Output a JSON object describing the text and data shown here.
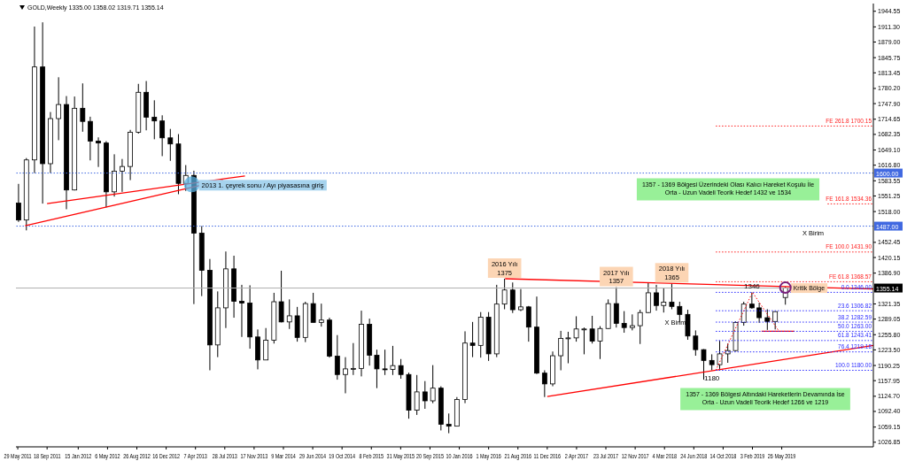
{
  "chart_data": {
    "type": "candlestick",
    "subtitle": "GOLD,Weekly  1335.00 1358.02 1319.71 1355.14",
    "color": "#000000",
    "x": [
      "2011-06",
      "2011-07",
      "2011-08",
      "2011-09",
      "2011-10",
      "2011-11",
      "2011-12",
      "2012-01",
      "2012-02",
      "2012-03",
      "2012-04",
      "2012-05",
      "2012-06",
      "2012-07",
      "2012-08",
      "2012-09",
      "2012-10",
      "2012-11",
      "2012-12",
      "2013-01",
      "2013-02",
      "2013-03",
      "2013-04",
      "2013-05",
      "2013-06",
      "2013-07",
      "2013-08",
      "2013-09",
      "2013-10",
      "2013-11",
      "2013-12",
      "2014-01",
      "2014-02",
      "2014-03",
      "2014-04",
      "2014-05",
      "2014-06",
      "2014-07",
      "2014-08",
      "2014-09",
      "2014-10",
      "2014-11",
      "2014-12",
      "2015-01",
      "2015-02",
      "2015-03",
      "2015-04",
      "2015-05",
      "2015-06",
      "2015-07",
      "2015-08",
      "2015-09",
      "2015-10",
      "2015-11",
      "2015-12",
      "2016-01",
      "2016-02",
      "2016-03",
      "2016-04",
      "2016-05",
      "2016-06",
      "2016-07",
      "2016-08",
      "2016-09",
      "2016-10",
      "2016-11",
      "2016-12",
      "2017-01",
      "2017-02",
      "2017-03",
      "2017-04",
      "2017-05",
      "2017-06",
      "2017-07",
      "2017-08",
      "2017-09",
      "2017-10",
      "2017-11",
      "2017-12",
      "2018-01",
      "2018-02",
      "2018-03",
      "2018-04",
      "2018-05",
      "2018-06",
      "2018-07",
      "2018-08",
      "2018-09",
      "2018-10",
      "2018-11",
      "2018-12",
      "2019-01",
      "2019-02",
      "2019-03",
      "2019-04",
      "2019-05",
      "2019-06-09"
    ],
    "ohlc": [
      [
        1536,
        1577,
        1496,
        1500
      ],
      [
        1500,
        1632,
        1478,
        1628
      ],
      [
        1628,
        1912,
        1600,
        1826
      ],
      [
        1826,
        1921,
        1535,
        1620
      ],
      [
        1620,
        1730,
        1600,
        1716
      ],
      [
        1716,
        1804,
        1670,
        1746
      ],
      [
        1746,
        1764,
        1523,
        1564
      ],
      [
        1564,
        1763,
        1563,
        1738
      ],
      [
        1738,
        1791,
        1688,
        1710
      ],
      [
        1710,
        1720,
        1627,
        1668
      ],
      [
        1668,
        1676,
        1613,
        1664
      ],
      [
        1664,
        1668,
        1527,
        1560
      ],
      [
        1560,
        1640,
        1550,
        1604
      ],
      [
        1604,
        1630,
        1560,
        1614
      ],
      [
        1614,
        1692,
        1585,
        1687
      ],
      [
        1687,
        1790,
        1684,
        1772
      ],
      [
        1772,
        1796,
        1691,
        1719
      ],
      [
        1719,
        1755,
        1672,
        1711
      ],
      [
        1711,
        1723,
        1636,
        1675
      ],
      [
        1675,
        1694,
        1626,
        1662
      ],
      [
        1662,
        1683,
        1555,
        1578
      ],
      [
        1578,
        1617,
        1562,
        1595
      ],
      [
        1595,
        1605,
        1321,
        1472
      ],
      [
        1472,
        1487,
        1338,
        1393
      ],
      [
        1393,
        1417,
        1180,
        1234
      ],
      [
        1234,
        1348,
        1208,
        1313
      ],
      [
        1313,
        1433,
        1270,
        1396
      ],
      [
        1396,
        1424,
        1292,
        1327
      ],
      [
        1327,
        1362,
        1251,
        1323
      ],
      [
        1323,
        1361,
        1226,
        1251
      ],
      [
        1251,
        1267,
        1182,
        1202
      ],
      [
        1202,
        1270,
        1202,
        1244
      ],
      [
        1244,
        1345,
        1237,
        1326
      ],
      [
        1326,
        1392,
        1282,
        1283
      ],
      [
        1283,
        1331,
        1268,
        1296
      ],
      [
        1296,
        1315,
        1241,
        1250
      ],
      [
        1250,
        1326,
        1240,
        1322
      ],
      [
        1322,
        1345,
        1282,
        1282
      ],
      [
        1282,
        1322,
        1273,
        1287
      ],
      [
        1287,
        1292,
        1207,
        1210
      ],
      [
        1210,
        1255,
        1160,
        1171
      ],
      [
        1171,
        1208,
        1131,
        1183
      ],
      [
        1183,
        1238,
        1170,
        1184
      ],
      [
        1184,
        1307,
        1167,
        1278
      ],
      [
        1278,
        1290,
        1190,
        1212
      ],
      [
        1212,
        1224,
        1142,
        1183
      ],
      [
        1183,
        1224,
        1170,
        1182
      ],
      [
        1182,
        1232,
        1170,
        1190
      ],
      [
        1190,
        1204,
        1162,
        1171
      ],
      [
        1171,
        1175,
        1077,
        1095
      ],
      [
        1095,
        1170,
        1085,
        1134
      ],
      [
        1134,
        1157,
        1098,
        1115
      ],
      [
        1115,
        1191,
        1110,
        1142
      ],
      [
        1142,
        1146,
        1052,
        1065
      ],
      [
        1065,
        1088,
        1046,
        1061
      ],
      [
        1061,
        1123,
        1061,
        1118
      ],
      [
        1118,
        1263,
        1110,
        1238
      ],
      [
        1238,
        1283,
        1208,
        1233
      ],
      [
        1233,
        1304,
        1207,
        1293
      ],
      [
        1293,
        1304,
        1200,
        1215
      ],
      [
        1215,
        1362,
        1208,
        1321
      ],
      [
        1321,
        1375,
        1310,
        1351
      ],
      [
        1351,
        1367,
        1302,
        1309
      ],
      [
        1309,
        1353,
        1306,
        1315
      ],
      [
        1315,
        1317,
        1241,
        1272
      ],
      [
        1272,
        1337,
        1172,
        1174
      ],
      [
        1174,
        1180,
        1123,
        1151
      ],
      [
        1151,
        1220,
        1146,
        1211
      ],
      [
        1211,
        1264,
        1180,
        1248
      ],
      [
        1248,
        1262,
        1195,
        1249
      ],
      [
        1249,
        1295,
        1241,
        1268
      ],
      [
        1268,
        1271,
        1214,
        1268
      ],
      [
        1268,
        1296,
        1237,
        1242
      ],
      [
        1242,
        1274,
        1204,
        1269
      ],
      [
        1269,
        1331,
        1268,
        1322
      ],
      [
        1322,
        1357,
        1271,
        1280
      ],
      [
        1280,
        1306,
        1260,
        1271
      ],
      [
        1271,
        1299,
        1265,
        1275
      ],
      [
        1275,
        1309,
        1236,
        1303
      ],
      [
        1303,
        1366,
        1302,
        1345
      ],
      [
        1345,
        1362,
        1307,
        1318
      ],
      [
        1318,
        1356,
        1303,
        1325
      ],
      [
        1325,
        1365,
        1310,
        1316
      ],
      [
        1316,
        1326,
        1282,
        1299
      ],
      [
        1299,
        1309,
        1245,
        1253
      ],
      [
        1253,
        1265,
        1211,
        1224
      ],
      [
        1224,
        1225,
        1160,
        1201
      ],
      [
        1201,
        1214,
        1180,
        1192
      ],
      [
        1192,
        1243,
        1183,
        1215
      ],
      [
        1215,
        1237,
        1196,
        1222
      ],
      [
        1222,
        1284,
        1221,
        1282
      ],
      [
        1282,
        1326,
        1275,
        1321
      ],
      [
        1321,
        1346,
        1311,
        1313
      ],
      [
        1313,
        1324,
        1281,
        1292
      ],
      [
        1292,
        1310,
        1266,
        1284
      ],
      [
        1284,
        1305,
        1267,
        1305
      ],
      [
        1335.0,
        1358.02,
        1319.71,
        1355.14
      ]
    ],
    "xlim": [
      "2011-05-22",
      "2020-05-10"
    ],
    "xticks": [
      {
        "value": "2011-05-29",
        "label": "29 May 2011"
      },
      {
        "value": "2011-09-18",
        "label": "18 Sep 2011"
      },
      {
        "value": "2012-01-15",
        "label": "15 Jan 2012"
      },
      {
        "value": "2012-05-06",
        "label": "6 May 2012"
      },
      {
        "value": "2012-08-26",
        "label": "26 Aug 2012"
      },
      {
        "value": "2012-12-16",
        "label": "16 Dec 2012"
      },
      {
        "value": "2013-04-07",
        "label": "7 Apr 2013"
      },
      {
        "value": "2013-07-28",
        "label": "28 Jul 2013"
      },
      {
        "value": "2013-11-17",
        "label": "17 Nov 2013"
      },
      {
        "value": "2014-03-09",
        "label": "9 Mar 2014"
      },
      {
        "value": "2014-06-29",
        "label": "29 Jun 2014"
      },
      {
        "value": "2014-10-19",
        "label": "19 Oct 2014"
      },
      {
        "value": "2015-02-08",
        "label": "8 Feb 2015"
      },
      {
        "value": "2015-05-31",
        "label": "31 May 2015"
      },
      {
        "value": "2015-09-20",
        "label": "20 Sep 2015"
      },
      {
        "value": "2016-01-10",
        "label": "10 Jan 2016"
      },
      {
        "value": "2016-05-01",
        "label": "1 May 2016"
      },
      {
        "value": "2016-08-21",
        "label": "21 Aug 2016"
      },
      {
        "value": "2016-12-11",
        "label": "11 Dec 2016"
      },
      {
        "value": "2017-04-02",
        "label": "2 Apr 2017"
      },
      {
        "value": "2017-07-23",
        "label": "23 Jul 2017"
      },
      {
        "value": "2017-11-12",
        "label": "12 Nov 2017"
      },
      {
        "value": "2018-03-04",
        "label": "4 Mar 2018"
      },
      {
        "value": "2018-06-24",
        "label": "24 Jun 2018"
      },
      {
        "value": "2018-10-14",
        "label": "14 Oct 2018"
      },
      {
        "value": "2019-02-03",
        "label": "3 Feb 2019"
      },
      {
        "value": "2019-05-26",
        "label": "26 May 2019"
      }
    ],
    "ylim": [
      1017,
      1961
    ],
    "yticks": [
      1944.55,
      {
        "value": 1911.3,
        "label": "1911.30"
      },
      {
        "value": 1879,
        "label": "1879.00"
      },
      1845.75,
      1813.45,
      {
        "value": 1780.2,
        "label": "1780.20"
      },
      {
        "value": 1747.9,
        "label": "1747.90"
      },
      1714.65,
      1682.35,
      {
        "value": 1649.1,
        "label": "1649.10"
      },
      {
        "value": 1616.8,
        "label": "1616.80"
      },
      1583.55,
      1551.25,
      {
        "value": 1518,
        "label": "1518.00"
      },
      1452.45,
      1420.15,
      {
        "value": 1386.9,
        "label": "1386.90"
      },
      1321.35,
      1289.05,
      {
        "value": 1255.8,
        "label": "1255.80"
      },
      {
        "value": 1223.5,
        "label": "1223.50"
      },
      1190.25,
      1157.95,
      {
        "value": 1124.7,
        "label": "1124.70"
      },
      {
        "value": 1092.4,
        "label": "1092.40"
      },
      1059.15,
      1026.85
    ],
    "series": [
      {
        "type": "line",
        "color": "#ff0000",
        "x": [
          "2011-09-18",
          "2013-10-13"
        ],
        "values": [
          1535,
          1594
        ]
      },
      {
        "type": "line",
        "color": "#ff0000",
        "x": [
          "2011-06-26",
          "2013-07-21"
        ],
        "values": [
          1488,
          1585
        ]
      },
      {
        "type": "line",
        "color": "#ff0000",
        "x": [
          "2016-07-03",
          "2020-05-10"
        ],
        "values": [
          1375,
          1353
        ]
      },
      {
        "type": "line",
        "color": "#ff0000",
        "x": [
          "2016-12-11",
          "2020-05-10"
        ],
        "values": [
          1124,
          1233
        ]
      },
      {
        "type": "line",
        "color": "#ff0000",
        "x": [
          "2019-03-10",
          "2019-07-14"
        ],
        "values": [
          1263,
          1263
        ]
      },
      {
        "type": "line",
        "color": "#ff0000",
        "line_style": "dotted",
        "x": [
          "2018-09-16",
          "2019-02-03",
          "2019-05-12"
        ],
        "values": [
          1180,
          1346,
          1266
        ]
      },
      {
        "type": "line",
        "name": "0.0 1346.00",
        "color": "#2b2bff",
        "line_style": "dotted",
        "x": [
          "2018-09-16",
          "2020-05-10"
        ],
        "values": [
          1346,
          1346
        ]
      },
      {
        "type": "line",
        "name": "23.6 1306.82",
        "color": "#2b2bff",
        "line_style": "dotted",
        "x": [
          "2018-09-16",
          "2020-05-10"
        ],
        "values": [
          1306.82,
          1306.82
        ]
      },
      {
        "type": "line",
        "name": "38.2 1282.59",
        "color": "#2b2bff",
        "line_style": "dotted",
        "x": [
          "2018-09-16",
          "2020-05-10"
        ],
        "values": [
          1282.59,
          1282.59
        ]
      },
      {
        "type": "line",
        "name": "50.0 1263.00",
        "color": "#2b2bff",
        "line_style": "dotted",
        "x": [
          "2018-09-16",
          "2020-05-10"
        ],
        "values": [
          1263,
          1263
        ]
      },
      {
        "type": "line",
        "name": "61.8 1243.41",
        "color": "#2b2bff",
        "line_style": "dotted",
        "x": [
          "2018-09-16",
          "2020-05-10"
        ],
        "values": [
          1243.41,
          1243.41
        ]
      },
      {
        "type": "line",
        "name": "76.4 1219.18",
        "color": "#2b2bff",
        "line_style": "dotted",
        "x": [
          "2018-09-16",
          "2020-05-10"
        ],
        "values": [
          1219.18,
          1219.18
        ]
      },
      {
        "type": "line",
        "name": "100.0 1180.00",
        "color": "#2b2bff",
        "line_style": "dotted",
        "x": [
          "2018-09-16",
          "2020-05-10"
        ],
        "values": [
          1180,
          1180
        ]
      },
      {
        "type": "line",
        "name": "FE 61.8 1368.57",
        "color": "#ff2020",
        "line_style": "dotted",
        "x": [
          "2018-09-16",
          "2020-05-10"
        ],
        "values": [
          1368.57,
          1368.57
        ]
      },
      {
        "type": "line",
        "name": "FE 100.0 1431.90",
        "color": "#ff2020",
        "line_style": "dotted",
        "x": [
          "2018-09-16",
          "2020-05-10"
        ],
        "values": [
          1431.9,
          1431.9
        ]
      },
      {
        "type": "line",
        "name": "FE 161.8 1534.36",
        "color": "#ff2020",
        "line_style": "dotted",
        "x": [
          "2019-11-17",
          "2020-05-10"
        ],
        "values": [
          1534.36,
          1534.36
        ]
      },
      {
        "type": "line",
        "name": "FE 261.8 1700.15",
        "color": "#ff2020",
        "line_style": "dotted",
        "x": [
          "2018-09-16",
          "2020-05-10"
        ],
        "values": [
          1700.15,
          1700.15
        ]
      }
    ],
    "ref_lines": [
      {
        "axis": "y",
        "value": 1600,
        "label": "1600.00",
        "color": "#4169e1",
        "line_style": "dotted"
      },
      {
        "axis": "y",
        "value": 1487,
        "label": "1487.00",
        "color": "#4169e1",
        "line_style": "dotted"
      },
      {
        "axis": "y",
        "value": 1355.14,
        "label": "1355.14",
        "color": "#b0b0b0",
        "line_style": "solid"
      }
    ],
    "annotations": [
      {
        "text": "2013 1. çeyrek sonu / Ayı piyasasına giriş",
        "x": "2013-03-24",
        "y": 1576
      },
      {
        "text": "2016 Yılı\n1375",
        "x": "2016-07",
        "y": 1375
      },
      {
        "text": "2017 Yılı\n1357",
        "x": "2017-09",
        "y": 1357
      },
      {
        "text": "2018 Yılı\n1365",
        "x": "2018-04",
        "y": 1365
      },
      {
        "text": "1346",
        "x": "2019-02",
        "y": 1346
      },
      {
        "text": "1180",
        "x": "2018-09",
        "y": 1180
      },
      {
        "text": "Kritik Bölge",
        "x": "2019-06-09",
        "y": 1356
      },
      {
        "text": "X Birim",
        "x": "2018-06",
        "y": 1282
      },
      "X Birim",
      "1357 - 1369 Bölgesi Üzerindeki Olası Kalıcı Hareket Koşulu İle\nOrta - Uzun Vadeli Teorik Hedef  1432 ve 1534",
      "1357 - 1369 Bölgesi Altındaki Hareketlerin Devamında İse\nOrta - Uzun Vadeli Teorik Hedef 1266 ve 1219"
    ]
  }
}
